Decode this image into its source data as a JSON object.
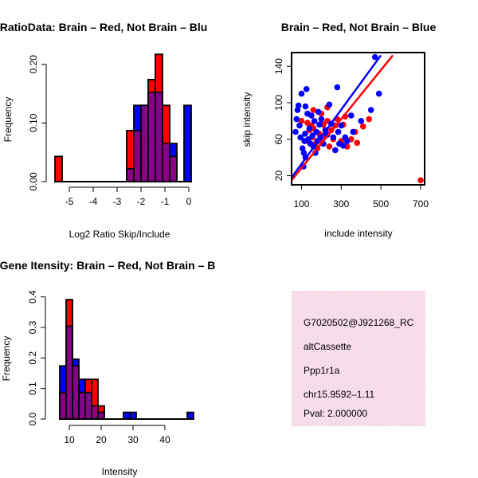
{
  "colors": {
    "red": "#ff0000",
    "blue": "#0000ff",
    "overlap": "#8b008b",
    "info_bg": "#f5d5e5",
    "pval": "#cc0000"
  },
  "chart_data": [
    {
      "type": "bar",
      "subtype": "histogram",
      "title": "RatioData: Brain – Red, Not Brain – Blu",
      "xlabel": "Log2 Ratio Skip/Include",
      "ylabel": "Frequency",
      "xlim": [
        -5.8,
        0.2
      ],
      "ylim": [
        0,
        0.22
      ],
      "xticks": [
        -5,
        -4,
        -3,
        -2,
        -1,
        0
      ],
      "xtick_labels": [
        "-5",
        "-4",
        "-3",
        "-2",
        "-1",
        "0"
      ],
      "yticks": [
        0,
        0.1,
        0.2
      ],
      "ytick_labels": [
        "0.00",
        "0.10",
        "0.20"
      ],
      "bins": [
        {
          "x0": -5.6,
          "x1": -5.3,
          "red": 0.043,
          "blue": 0
        },
        {
          "x0": -2.6,
          "x1": -2.3,
          "red": 0.087,
          "blue": 0.022
        },
        {
          "x0": -2.3,
          "x1": -2.0,
          "red": 0.087,
          "blue": 0.13
        },
        {
          "x0": -2.0,
          "x1": -1.7,
          "red": 0.13,
          "blue": 0.13
        },
        {
          "x0": -1.7,
          "x1": -1.4,
          "red": 0.174,
          "blue": 0.152
        },
        {
          "x0": -1.4,
          "x1": -1.1,
          "red": 0.217,
          "blue": 0.152
        },
        {
          "x0": -1.1,
          "x1": -0.8,
          "red": 0.13,
          "blue": 0.065
        },
        {
          "x0": -0.8,
          "x1": -0.5,
          "red": 0.043,
          "blue": 0.065
        },
        {
          "x0": -0.5,
          "x1": -0.2,
          "red": 0,
          "blue": 0
        },
        {
          "x0": -0.2,
          "x1": 0.1,
          "red": 0,
          "blue": 0.13
        }
      ]
    },
    {
      "type": "scatter",
      "title": "Brain – Red, Not Brain – Blue",
      "xlabel": "include intensity",
      "ylabel": "skip intensity",
      "xlim": [
        50,
        720
      ],
      "ylim": [
        10,
        155
      ],
      "xticks": [
        100,
        300,
        500,
        700
      ],
      "xtick_labels": [
        "100",
        "300",
        "500",
        "700"
      ],
      "yticks": [
        20,
        60,
        100,
        140
      ],
      "ytick_labels": [
        "20",
        "60",
        "100",
        "140"
      ],
      "series": [
        {
          "name": "Brain",
          "color": "#ff0000",
          "fit": [
            [
              50,
              15
            ],
            [
              560,
              152
            ]
          ],
          "points": [
            [
              700,
              15
            ],
            [
              100,
              80
            ],
            [
              130,
              58
            ],
            [
              140,
              70
            ],
            [
              150,
              75
            ],
            [
              155,
              62
            ],
            [
              160,
              72
            ],
            [
              170,
              55
            ],
            [
              180,
              50
            ],
            [
              190,
              66
            ],
            [
              200,
              58
            ],
            [
              210,
              76
            ],
            [
              220,
              64
            ],
            [
              230,
              80
            ],
            [
              240,
              52
            ],
            [
              250,
              70
            ],
            [
              260,
              60
            ],
            [
              270,
              75
            ],
            [
              280,
              82
            ],
            [
              300,
              58
            ],
            [
              310,
              76
            ],
            [
              320,
              85
            ],
            [
              330,
              52
            ],
            [
              350,
              60
            ],
            [
              370,
              68
            ],
            [
              380,
              56
            ],
            [
              410,
              74
            ],
            [
              440,
              82
            ],
            [
              160,
              92
            ],
            [
              200,
              88
            ],
            [
              230,
              95
            ],
            [
              130,
              78
            ]
          ]
        },
        {
          "name": "Not Brain",
          "color": "#0000ff",
          "fit": [
            [
              50,
              18
            ],
            [
              500,
              152
            ]
          ],
          "points": [
            [
              70,
              68
            ],
            [
              75,
              82
            ],
            [
              80,
              92
            ],
            [
              85,
              97
            ],
            [
              90,
              75
            ],
            [
              95,
              62
            ],
            [
              100,
              110
            ],
            [
              105,
              50
            ],
            [
              110,
              30
            ],
            [
              112,
              45
            ],
            [
              115,
              58
            ],
            [
              118,
              66
            ],
            [
              120,
              96
            ],
            [
              125,
              115
            ],
            [
              130,
              88
            ],
            [
              135,
              60
            ],
            [
              140,
              72
            ],
            [
              145,
              55
            ],
            [
              150,
              86
            ],
            [
              155,
              64
            ],
            [
              160,
              52
            ],
            [
              165,
              80
            ],
            [
              170,
              45
            ],
            [
              175,
              68
            ],
            [
              180,
              58
            ],
            [
              185,
              90
            ],
            [
              190,
              76
            ],
            [
              195,
              62
            ],
            [
              200,
              82
            ],
            [
              210,
              55
            ],
            [
              220,
              70
            ],
            [
              230,
              65
            ],
            [
              240,
              98
            ],
            [
              250,
              77
            ],
            [
              260,
              62
            ],
            [
              270,
              48
            ],
            [
              280,
              117
            ],
            [
              285,
              68
            ],
            [
              290,
              55
            ],
            [
              300,
              75
            ],
            [
              320,
              62
            ],
            [
              330,
              58
            ],
            [
              350,
              86
            ],
            [
              400,
              80
            ],
            [
              450,
              92
            ],
            [
              470,
              150
            ],
            [
              490,
              110
            ],
            [
              360,
              68
            ],
            [
              310,
              53
            ],
            [
              120,
              40
            ]
          ]
        }
      ]
    },
    {
      "type": "bar",
      "subtype": "histogram",
      "title": "Gene Itensity: Brain – Red, Not Brain – B",
      "xlabel": "Intensity",
      "ylabel": "Frequency",
      "xlim": [
        4,
        49
      ],
      "ylim": [
        0,
        0.42
      ],
      "xticks": [
        10,
        20,
        30,
        40
      ],
      "xtick_labels": [
        "10",
        "20",
        "30",
        "40"
      ],
      "yticks": [
        0,
        0.1,
        0.2,
        0.3,
        0.4
      ],
      "ytick_labels": [
        "0.0",
        "0.1",
        "0.2",
        "0.3",
        "0.4"
      ],
      "bins": [
        {
          "x0": 7,
          "x1": 9,
          "red": 0.087,
          "blue": 0.174
        },
        {
          "x0": 9,
          "x1": 11,
          "red": 0.391,
          "blue": 0.304
        },
        {
          "x0": 11,
          "x1": 13,
          "red": 0.174,
          "blue": 0.196
        },
        {
          "x0": 13,
          "x1": 15,
          "red": 0.087,
          "blue": 0.13
        },
        {
          "x0": 15,
          "x1": 17,
          "red": 0.13,
          "blue": 0.087
        },
        {
          "x0": 17,
          "x1": 19,
          "red": 0.13,
          "blue": 0.043
        },
        {
          "x0": 19,
          "x1": 21,
          "red": 0.043,
          "blue": 0.022
        },
        {
          "x0": 27,
          "x1": 29,
          "red": 0,
          "blue": 0.022
        },
        {
          "x0": 29,
          "x1": 31,
          "red": 0,
          "blue": 0.022
        },
        {
          "x0": 47,
          "x1": 49,
          "red": 0,
          "blue": 0.022
        }
      ]
    }
  ],
  "info_panel": {
    "probe_id": "G7020502@J921268_RC",
    "event_type": "altCassette",
    "gene": "Ppp1r1a",
    "location": "chr15.9592–1.11",
    "pval": "Pval: 2.000000"
  }
}
